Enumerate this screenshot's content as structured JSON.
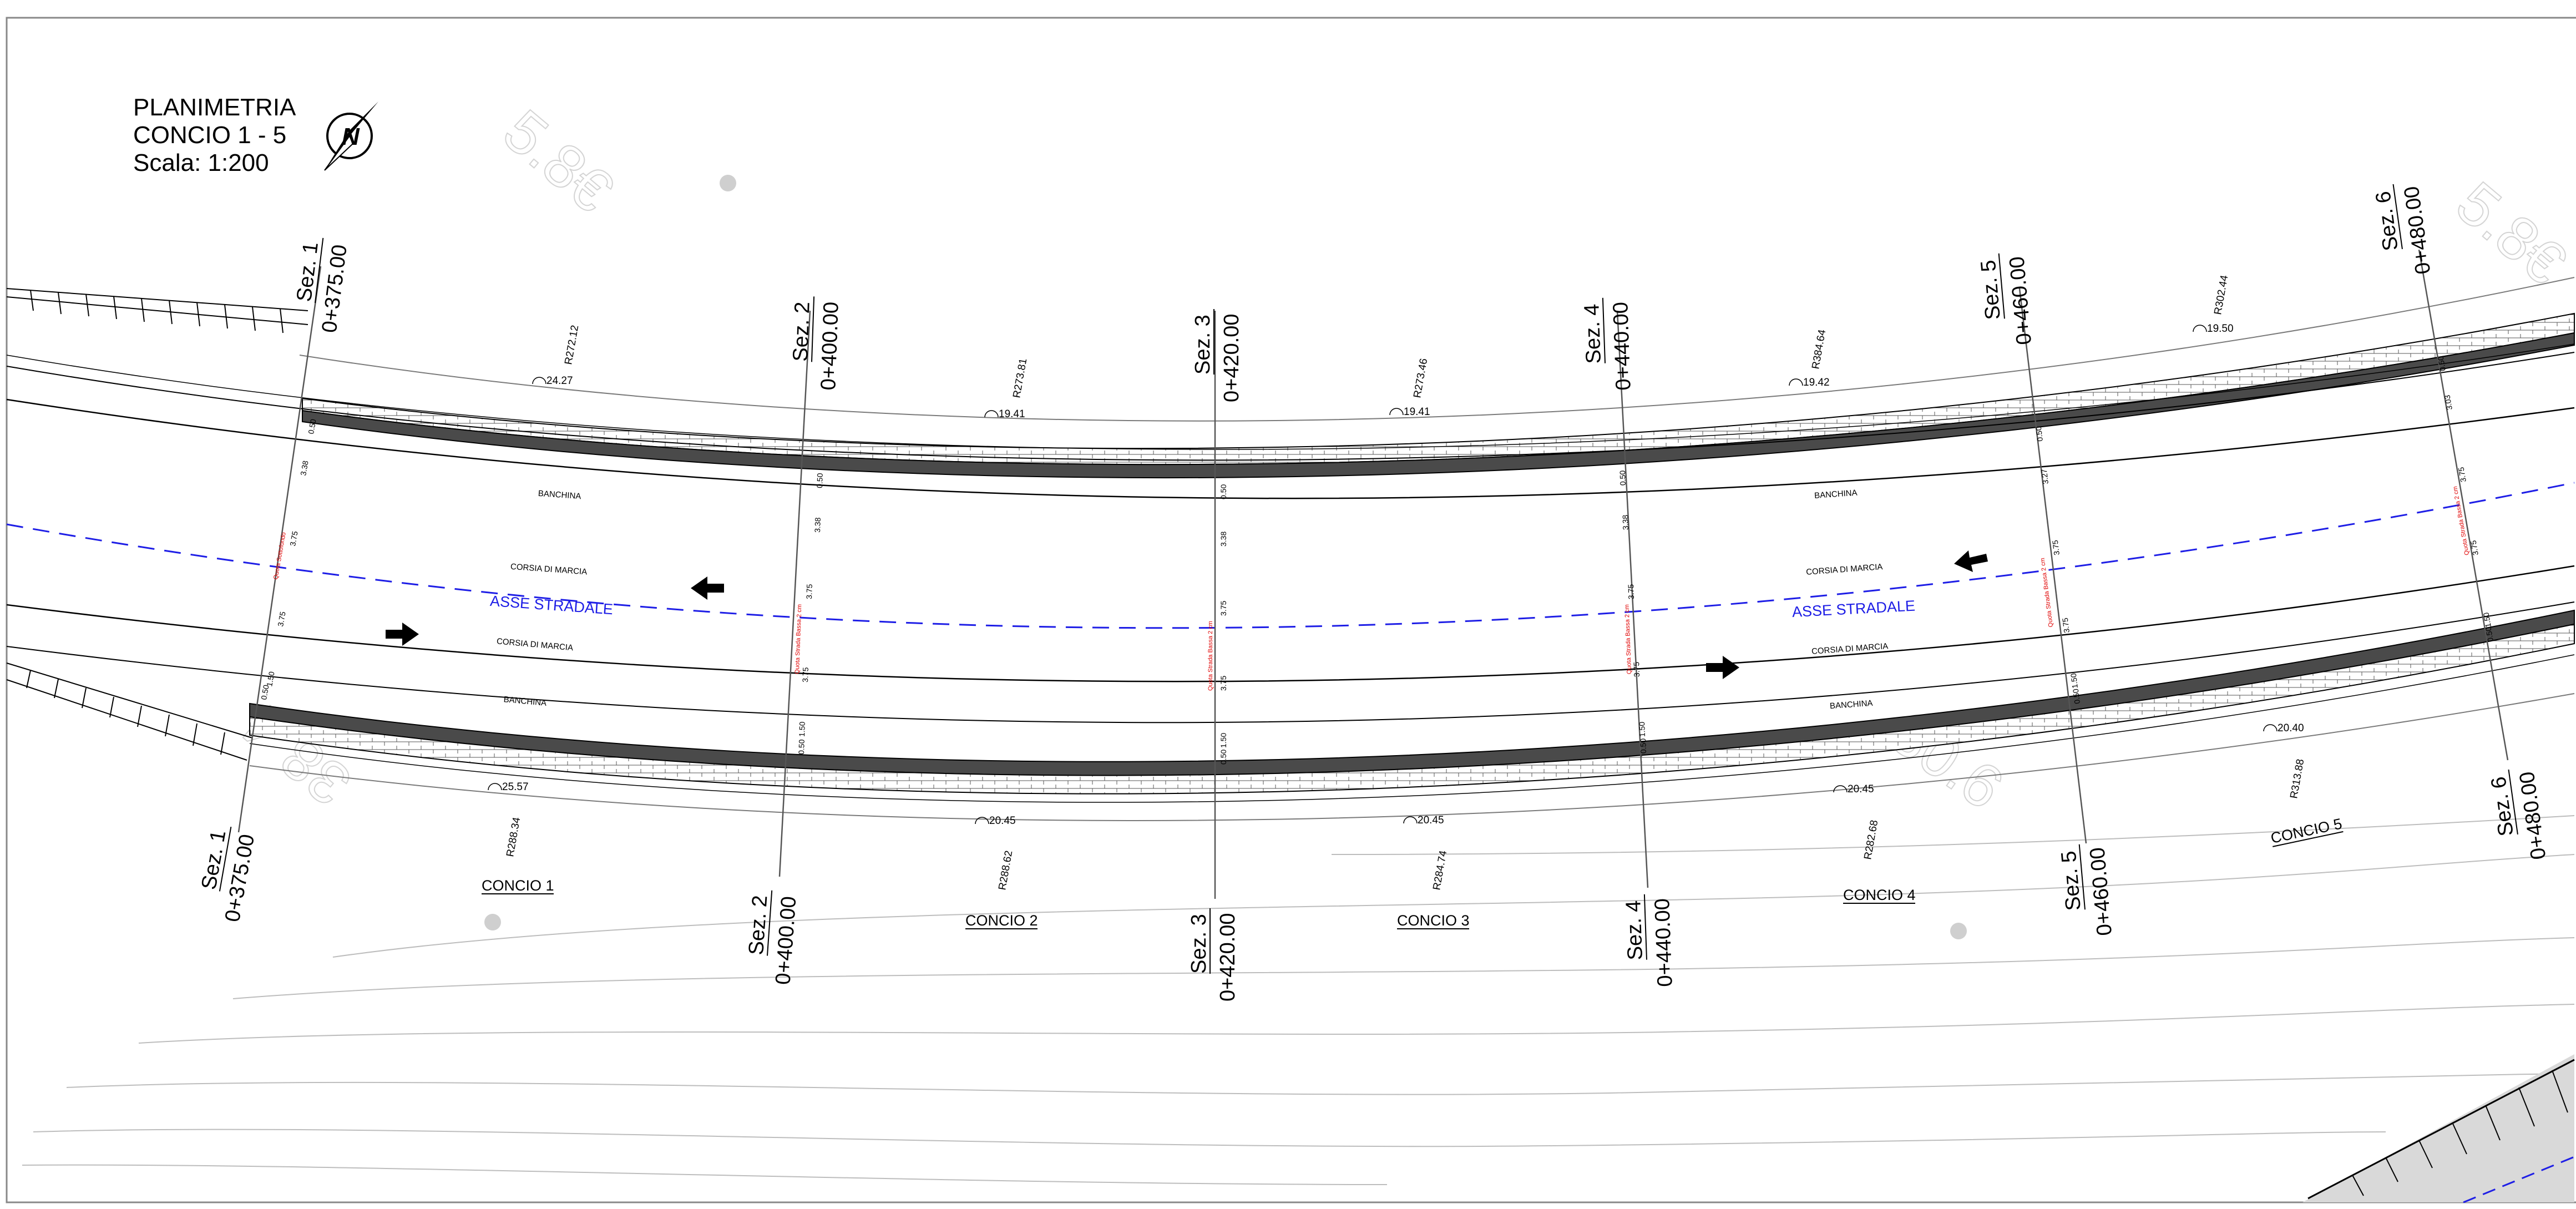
{
  "title_block": {
    "line1": "PLANIMETRIA",
    "line2": "CONCIO 1 - 5",
    "line3": "Scala: 1:200",
    "north_letter": "N"
  },
  "sections_top": [
    {
      "label": "Sez. 1",
      "chainage": "0+375.00"
    },
    {
      "label": "Sez. 2",
      "chainage": "0+400.00"
    },
    {
      "label": "Sez. 3",
      "chainage": "0+420.00"
    },
    {
      "label": "Sez. 4",
      "chainage": "0+440.00"
    },
    {
      "label": "Sez. 5",
      "chainage": "0+460.00"
    },
    {
      "label": "Sez. 6",
      "chainage": "0+480.00"
    }
  ],
  "sections_bottom": [
    {
      "label": "Sez. 1",
      "chainage": "0+375.00"
    },
    {
      "label": "Sez. 2",
      "chainage": "0+400.00"
    },
    {
      "label": "Sez. 3",
      "chainage": "0+420.00"
    },
    {
      "label": "Sez. 4",
      "chainage": "0+440.00"
    },
    {
      "label": "Sez. 5",
      "chainage": "0+460.00"
    },
    {
      "label": "Sez. 6",
      "chainage": "0+480.00"
    }
  ],
  "top_radii": [
    "R272.12",
    "R273.81",
    "R273.46",
    "R384.64",
    "R302.44"
  ],
  "top_arcs": [
    "24.27",
    "19.41",
    "19.41",
    "19.42",
    "19.50"
  ],
  "bottom_radii": [
    "R288.34",
    "R288.62",
    "R284.74",
    "R282.68",
    "R313.88"
  ],
  "bottom_arcs": [
    "25.57",
    "20.45",
    "20.45",
    "20.45",
    "20.40"
  ],
  "concio_labels": [
    "CONCIO 1",
    "CONCIO 2",
    "CONCIO 3",
    "CONCIO 4",
    "CONCIO 5"
  ],
  "lane_labels": {
    "banchina": "BANCHINA",
    "corsia": "CORSIA DI MARCIA",
    "asse": "ASSE STRADALE"
  },
  "section_dims": {
    "top_shoulder": "0.50",
    "banchina": "3.38",
    "banchina_alt": "3.27",
    "banchina_alt2": "3.03",
    "lane": "3.75",
    "bottom_shoulder": "1.50",
    "bottom_edge": "0.50"
  },
  "red_notes": {
    "note_main": "Quota Strada Bassa 2 cm",
    "note_alt": "Quota Sottofondo"
  },
  "ghost_numbers": [
    "5.8€",
    "38.4",
    "30.6"
  ]
}
